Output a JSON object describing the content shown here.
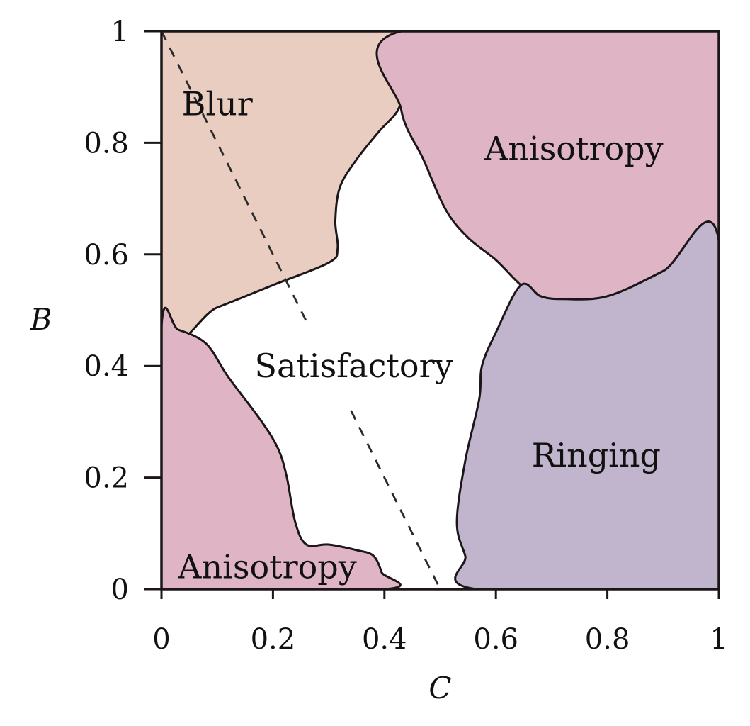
{
  "chart_data": {
    "type": "region-map",
    "title": "",
    "xlabel": "C",
    "ylabel": "B",
    "xlim": [
      0,
      1
    ],
    "ylim": [
      0,
      1
    ],
    "grid": false,
    "x_ticks": [
      {
        "value": 0,
        "label": "0"
      },
      {
        "value": 0.2,
        "label": "0.2"
      },
      {
        "value": 0.4,
        "label": "0.4"
      },
      {
        "value": 0.6,
        "label": "0.6"
      },
      {
        "value": 0.8,
        "label": "0.8"
      },
      {
        "value": 1,
        "label": "1"
      }
    ],
    "y_ticks": [
      {
        "value": 0,
        "label": "0"
      },
      {
        "value": 0.2,
        "label": "0.2"
      },
      {
        "value": 0.4,
        "label": "0.4"
      },
      {
        "value": 0.6,
        "label": "0.6"
      },
      {
        "value": 0.8,
        "label": "0.8"
      },
      {
        "value": 1,
        "label": "1"
      }
    ],
    "regions": [
      {
        "id": "blur",
        "name": "Blur",
        "color": "#e8cdc0",
        "label_at": [
          0.1,
          0.87
        ],
        "boundary": [
          [
            0,
            1
          ],
          [
            0.43,
            1
          ],
          [
            0.428,
            0.9
          ],
          [
            0.425,
            0.86
          ],
          [
            0.39,
            0.82
          ],
          [
            0.35,
            0.77
          ],
          [
            0.32,
            0.72
          ],
          [
            0.312,
            0.66
          ],
          [
            0.316,
            0.61
          ],
          [
            0.3,
            0.585
          ],
          [
            0.2,
            0.545
          ],
          [
            0.1,
            0.505
          ],
          [
            0,
            0.47
          ]
        ]
      },
      {
        "id": "anisotropy-top",
        "name": "Anisotropy",
        "color": "#dfb5c5",
        "label_at": [
          0.74,
          0.79
        ],
        "boundary": [
          [
            0.43,
            1
          ],
          [
            1,
            1
          ],
          [
            1,
            0.625
          ],
          [
            0.9,
            0.57
          ],
          [
            0.8,
            0.525
          ],
          [
            0.72,
            0.52
          ],
          [
            0.68,
            0.525
          ],
          [
            0.645,
            0.545
          ],
          [
            0.6,
            0.59
          ],
          [
            0.55,
            0.63
          ],
          [
            0.51,
            0.68
          ],
          [
            0.47,
            0.77
          ],
          [
            0.43,
            0.86
          ]
        ]
      },
      {
        "id": "ringing",
        "name": "Ringing",
        "color": "#c0b5cc",
        "label_at": [
          0.78,
          0.24
        ],
        "boundary": [
          [
            1,
            0.625
          ],
          [
            1,
            0
          ],
          [
            0.565,
            0
          ],
          [
            0.545,
            0.06
          ],
          [
            0.53,
            0.12
          ],
          [
            0.545,
            0.23
          ],
          [
            0.57,
            0.34
          ],
          [
            0.575,
            0.4
          ],
          [
            0.6,
            0.46
          ],
          [
            0.645,
            0.545
          ],
          [
            0.68,
            0.525
          ],
          [
            0.72,
            0.52
          ],
          [
            0.8,
            0.525
          ],
          [
            0.9,
            0.57
          ]
        ]
      },
      {
        "id": "anisotropy-bottom",
        "name": "Anisotropy",
        "color": "#dfb5c5",
        "label_at": [
          0.19,
          0.04
        ],
        "boundary": [
          [
            0,
            0.47
          ],
          [
            0,
            0
          ],
          [
            0.4,
            0
          ],
          [
            0.395,
            0.03
          ],
          [
            0.38,
            0.06
          ],
          [
            0.35,
            0.07
          ],
          [
            0.3,
            0.08
          ],
          [
            0.26,
            0.08
          ],
          [
            0.24,
            0.12
          ],
          [
            0.225,
            0.2
          ],
          [
            0.21,
            0.25
          ],
          [
            0.18,
            0.3
          ],
          [
            0.12,
            0.38
          ],
          [
            0.08,
            0.44
          ],
          [
            0.03,
            0.465
          ]
        ]
      },
      {
        "id": "satisfactory",
        "name": "Satisfactory",
        "color": "#ffffff",
        "label_at": [
          0.345,
          0.4
        ],
        "boundary": []
      }
    ],
    "dashed_line": {
      "from": [
        0,
        1
      ],
      "to": [
        0.5,
        0
      ],
      "gap_ranges": [
        [
          0.26,
          0.34
        ]
      ]
    },
    "colors": {
      "outline": "#1c1618",
      "dashed": "#2a2a2a"
    }
  }
}
